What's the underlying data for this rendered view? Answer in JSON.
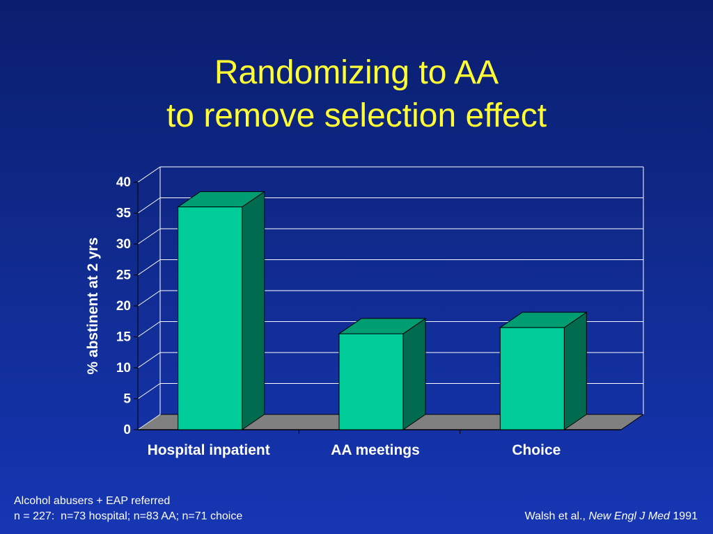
{
  "slide": {
    "title_line1": "Randomizing to AA",
    "title_line2": "to remove selection effect"
  },
  "footnote": {
    "line1": "Alcohol abusers + EAP referred",
    "line2": "n = 227:  n=73 hospital; n=83 AA; n=71 choice"
  },
  "citation": {
    "authors": "Walsh et al., ",
    "journal": "New Engl J Med",
    "year": " 1991"
  },
  "chart_data": {
    "type": "bar",
    "style": "3d",
    "categories": [
      "Hospital inpatient",
      "AA meetings",
      "Choice"
    ],
    "values": [
      36,
      15.5,
      16.5
    ],
    "title": "",
    "xlabel": "",
    "ylabel": "% abstinent at 2 yrs",
    "ylim": [
      0,
      40
    ],
    "yticks": [
      0,
      5,
      10,
      15,
      20,
      25,
      30,
      35,
      40
    ],
    "grid": true,
    "legend": "none",
    "colors": {
      "bar_front": "#00cc99",
      "bar_top": "#009c72",
      "bar_side": "#006b4e",
      "floor": "#808080",
      "grid": "#ffffff",
      "text": "#ffffff"
    }
  }
}
